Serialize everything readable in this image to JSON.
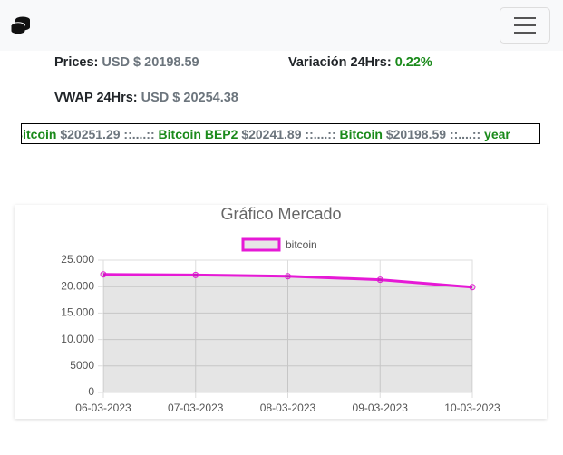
{
  "stats": {
    "prices_label": "Prices:",
    "prices_value": "USD $ 20198.59",
    "variation_label": "Variación 24Hrs:",
    "variation_value": "0.22%",
    "vwap_label": "VWAP 24Hrs:",
    "vwap_value": "USD $ 20254.38"
  },
  "ticker": {
    "separator": "::....::",
    "items": [
      {
        "name": "Bitcoin",
        "price": "$20251.29"
      },
      {
        "name": "Bitcoin BEP2",
        "price": "$20241.89"
      },
      {
        "name": "Bitcoin",
        "price": "$20198.59"
      },
      {
        "name": "year"
      }
    ]
  },
  "chart_data": {
    "type": "line",
    "title": "Gráfico Mercado",
    "categories": [
      "06-03-2023",
      "07-03-2023",
      "08-03-2023",
      "09-03-2023",
      "10-03-2023"
    ],
    "series": [
      {
        "name": "bitcoin",
        "color": "#e619d6",
        "values": [
          22300,
          22200,
          21950,
          21300,
          19900
        ]
      }
    ],
    "ylim": [
      0,
      25000
    ],
    "yticks": [
      0,
      5000,
      {
        "value": 10000,
        "label": "10.000"
      },
      {
        "value": 15000,
        "label": "15.000"
      },
      {
        "value": 20000,
        "label": "20.000"
      },
      {
        "value": 25000,
        "label": "25.000"
      }
    ],
    "grid": true
  }
}
